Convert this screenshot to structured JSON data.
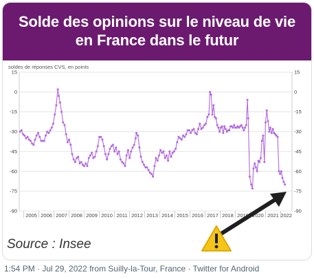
{
  "banner": {
    "title_line1": "Solde des opinions sur le niveau de vie",
    "title_line2": "en France dans le futur"
  },
  "source_text": "Source : Insee",
  "footer_text": "1:54 PM · Jul 29, 2022 from Suilly-la-Tour, France · Twitter for Android",
  "colors": {
    "banner": "#6b1a6f",
    "line": "#b267e0",
    "arrow": "#1f1f1f",
    "warning": "#f5c518"
  },
  "warning_icon": "warning-triangle-icon",
  "chart_data": {
    "type": "line",
    "ylabel": "soldes de réponses CVS, en points",
    "ylim": [
      -90,
      15
    ],
    "yticks": [
      15,
      0,
      -15,
      -30,
      -45,
      -60,
      -75,
      -90
    ],
    "xlim": [
      2004.7,
      2022.75
    ],
    "year_labels": [
      "2005",
      "2006",
      "2007",
      "2008",
      "2009",
      "2010",
      "2011",
      "2012",
      "2013",
      "2014",
      "2015",
      "2016",
      "2017",
      "2018",
      "2019",
      "2020",
      "2021",
      "2022"
    ],
    "grid": true,
    "series": [
      {
        "values": [
          [
            2004.75,
            -30
          ],
          [
            2004.85,
            -29
          ],
          [
            2004.95,
            -32
          ],
          [
            2005.05,
            -33
          ],
          [
            2005.15,
            -35
          ],
          [
            2005.25,
            -34
          ],
          [
            2005.35,
            -36
          ],
          [
            2005.45,
            -37
          ],
          [
            2005.55,
            -39
          ],
          [
            2005.65,
            -40
          ],
          [
            2005.75,
            -36
          ],
          [
            2005.85,
            -33
          ],
          [
            2005.95,
            -31
          ],
          [
            2006.05,
            -34
          ],
          [
            2006.15,
            -37
          ],
          [
            2006.25,
            -37
          ],
          [
            2006.35,
            -37
          ],
          [
            2006.45,
            -33
          ],
          [
            2006.55,
            -30
          ],
          [
            2006.65,
            -31
          ],
          [
            2006.75,
            -29
          ],
          [
            2006.85,
            -27
          ],
          [
            2006.95,
            -24
          ],
          [
            2007.05,
            -17
          ],
          [
            2007.15,
            -10
          ],
          [
            2007.25,
            2
          ],
          [
            2007.32,
            -3
          ],
          [
            2007.4,
            -8
          ],
          [
            2007.5,
            -15
          ],
          [
            2007.6,
            -23
          ],
          [
            2007.7,
            -25
          ],
          [
            2007.8,
            -32
          ],
          [
            2007.9,
            -38
          ],
          [
            2008.0,
            -36
          ],
          [
            2008.1,
            -40
          ],
          [
            2008.2,
            -47
          ],
          [
            2008.3,
            -51
          ],
          [
            2008.4,
            -53
          ],
          [
            2008.5,
            -50
          ],
          [
            2008.6,
            -49
          ],
          [
            2008.7,
            -54
          ],
          [
            2008.8,
            -53
          ],
          [
            2008.9,
            -55
          ],
          [
            2009.0,
            -56
          ],
          [
            2009.1,
            -54
          ],
          [
            2009.2,
            -56
          ],
          [
            2009.3,
            -50
          ],
          [
            2009.4,
            -48
          ],
          [
            2009.5,
            -46
          ],
          [
            2009.6,
            -50
          ],
          [
            2009.7,
            -49
          ],
          [
            2009.8,
            -45
          ],
          [
            2009.9,
            -41
          ],
          [
            2010.0,
            -34
          ],
          [
            2010.1,
            -34
          ],
          [
            2010.2,
            -36
          ],
          [
            2010.3,
            -41
          ],
          [
            2010.4,
            -47
          ],
          [
            2010.5,
            -51
          ],
          [
            2010.6,
            -47
          ],
          [
            2010.7,
            -43
          ],
          [
            2010.8,
            -41
          ],
          [
            2010.9,
            -40
          ],
          [
            2011.0,
            -45
          ],
          [
            2011.1,
            -42
          ],
          [
            2011.2,
            -47
          ],
          [
            2011.3,
            -45
          ],
          [
            2011.4,
            -51
          ],
          [
            2011.5,
            -53
          ],
          [
            2011.6,
            -54
          ],
          [
            2011.7,
            -56
          ],
          [
            2011.8,
            -48
          ],
          [
            2011.9,
            -44
          ],
          [
            2012.0,
            -50
          ],
          [
            2012.1,
            -45
          ],
          [
            2012.2,
            -42
          ],
          [
            2012.3,
            -40
          ],
          [
            2012.4,
            -35
          ],
          [
            2012.45,
            -31
          ],
          [
            2012.55,
            -33
          ],
          [
            2012.65,
            -42
          ],
          [
            2012.75,
            -49
          ],
          [
            2012.85,
            -53
          ],
          [
            2012.95,
            -55
          ],
          [
            2013.05,
            -57
          ],
          [
            2013.15,
            -57
          ],
          [
            2013.25,
            -59
          ],
          [
            2013.35,
            -61
          ],
          [
            2013.45,
            -62
          ],
          [
            2013.55,
            -64
          ],
          [
            2013.65,
            -56
          ],
          [
            2013.75,
            -50
          ],
          [
            2013.85,
            -52
          ],
          [
            2013.95,
            -48
          ],
          [
            2014.05,
            -44
          ],
          [
            2014.15,
            -46
          ],
          [
            2014.25,
            -45
          ],
          [
            2014.35,
            -50
          ],
          [
            2014.45,
            -48
          ],
          [
            2014.55,
            -52
          ],
          [
            2014.65,
            -45
          ],
          [
            2014.75,
            -49
          ],
          [
            2014.85,
            -46
          ],
          [
            2014.95,
            -45
          ],
          [
            2015.05,
            -43
          ],
          [
            2015.15,
            -38
          ],
          [
            2015.25,
            -34
          ],
          [
            2015.35,
            -35
          ],
          [
            2015.45,
            -36
          ],
          [
            2015.55,
            -33
          ],
          [
            2015.65,
            -34
          ],
          [
            2015.75,
            -32
          ],
          [
            2015.85,
            -29
          ],
          [
            2015.95,
            -29
          ],
          [
            2016.05,
            -31
          ],
          [
            2016.15,
            -29
          ],
          [
            2016.25,
            -28
          ],
          [
            2016.35,
            -31
          ],
          [
            2016.45,
            -32
          ],
          [
            2016.55,
            -28
          ],
          [
            2016.65,
            -24
          ],
          [
            2016.75,
            -28
          ],
          [
            2016.85,
            -27
          ],
          [
            2016.95,
            -25
          ],
          [
            2017.05,
            -24
          ],
          [
            2017.15,
            -19
          ],
          [
            2017.25,
            -17
          ],
          [
            2017.32,
            0
          ],
          [
            2017.4,
            -2
          ],
          [
            2017.48,
            -17
          ],
          [
            2017.56,
            -10
          ],
          [
            2017.64,
            -19
          ],
          [
            2017.72,
            -20
          ],
          [
            2017.8,
            -25
          ],
          [
            2017.88,
            -27
          ],
          [
            2017.96,
            -30
          ],
          [
            2018.04,
            -27
          ],
          [
            2018.12,
            -26
          ],
          [
            2018.2,
            -31
          ],
          [
            2018.28,
            -26
          ],
          [
            2018.36,
            -28
          ],
          [
            2018.44,
            -30
          ],
          [
            2018.52,
            -29
          ],
          [
            2018.6,
            -29
          ],
          [
            2018.68,
            -26
          ],
          [
            2018.76,
            -26
          ],
          [
            2018.84,
            -27
          ],
          [
            2018.92,
            -25
          ],
          [
            2019.0,
            -27
          ],
          [
            2019.08,
            -27
          ],
          [
            2019.16,
            -26
          ],
          [
            2019.24,
            -27
          ],
          [
            2019.32,
            -26
          ],
          [
            2019.4,
            -25
          ],
          [
            2019.48,
            -27
          ],
          [
            2019.56,
            -29
          ],
          [
            2019.64,
            -27
          ],
          [
            2019.72,
            -25
          ],
          [
            2019.8,
            -6
          ],
          [
            2019.85,
            -20
          ],
          [
            2019.95,
            -64
          ],
          [
            2020.05,
            -70
          ],
          [
            2020.13,
            -73
          ],
          [
            2020.2,
            -58
          ],
          [
            2020.28,
            -54
          ],
          [
            2020.36,
            -57
          ],
          [
            2020.44,
            -60
          ],
          [
            2020.52,
            -52
          ],
          [
            2020.6,
            -53
          ],
          [
            2020.68,
            -50
          ],
          [
            2020.76,
            -37
          ],
          [
            2020.84,
            -33
          ],
          [
            2020.92,
            -53
          ],
          [
            2021.0,
            -23
          ],
          [
            2021.08,
            -14
          ],
          [
            2021.16,
            -22
          ],
          [
            2021.24,
            -30
          ],
          [
            2021.32,
            -27
          ],
          [
            2021.4,
            -31
          ],
          [
            2021.48,
            -28
          ],
          [
            2021.56,
            -31
          ],
          [
            2021.64,
            -32
          ],
          [
            2021.72,
            -33
          ],
          [
            2021.8,
            -34
          ],
          [
            2021.88,
            -60
          ],
          [
            2021.96,
            -62
          ],
          [
            2022.04,
            -60
          ],
          [
            2022.12,
            -65
          ],
          [
            2022.2,
            -68
          ],
          [
            2022.28,
            -70
          ]
        ]
      }
    ]
  }
}
